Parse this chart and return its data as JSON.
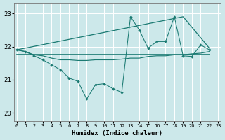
{
  "xlabel": "Humidex (Indice chaleur)",
  "bg_color": "#cce8ea",
  "line_color": "#1a7a72",
  "grid_color": "#ffffff",
  "xlim": [
    -0.3,
    23.3
  ],
  "ylim": [
    19.75,
    23.3
  ],
  "yticks": [
    20,
    21,
    22,
    23
  ],
  "xticks": [
    0,
    1,
    2,
    3,
    4,
    5,
    6,
    7,
    8,
    9,
    10,
    11,
    12,
    13,
    14,
    15,
    16,
    17,
    18,
    19,
    20,
    21,
    22,
    23
  ],
  "trend_line_x": [
    0,
    19,
    22
  ],
  "trend_line_y": [
    21.9,
    22.9,
    21.95
  ],
  "flat_line_x": [
    0,
    22
  ],
  "flat_line_y": [
    21.75,
    21.75
  ],
  "smooth_line_x": [
    0,
    1,
    2,
    3,
    4,
    5,
    6,
    7,
    8,
    9,
    10,
    11,
    12,
    13,
    14,
    15,
    16,
    17,
    18,
    19,
    20,
    21,
    22
  ],
  "smooth_line_y": [
    21.9,
    21.85,
    21.75,
    21.72,
    21.65,
    21.6,
    21.6,
    21.58,
    21.58,
    21.6,
    21.6,
    21.6,
    21.62,
    21.65,
    21.65,
    21.7,
    21.72,
    21.72,
    21.75,
    21.75,
    21.78,
    21.8,
    21.85
  ],
  "zigzag_x": [
    0,
    1,
    2,
    3,
    4,
    5,
    6,
    7,
    8,
    9,
    10,
    11,
    12,
    13,
    14,
    15,
    16,
    17,
    18,
    19,
    20,
    21,
    22
  ],
  "zigzag_y": [
    21.9,
    21.85,
    21.72,
    21.6,
    21.45,
    21.3,
    21.05,
    20.95,
    20.42,
    20.85,
    20.88,
    20.73,
    20.62,
    22.9,
    22.5,
    21.95,
    22.15,
    22.15,
    22.9,
    21.72,
    21.7,
    22.05,
    21.9
  ]
}
